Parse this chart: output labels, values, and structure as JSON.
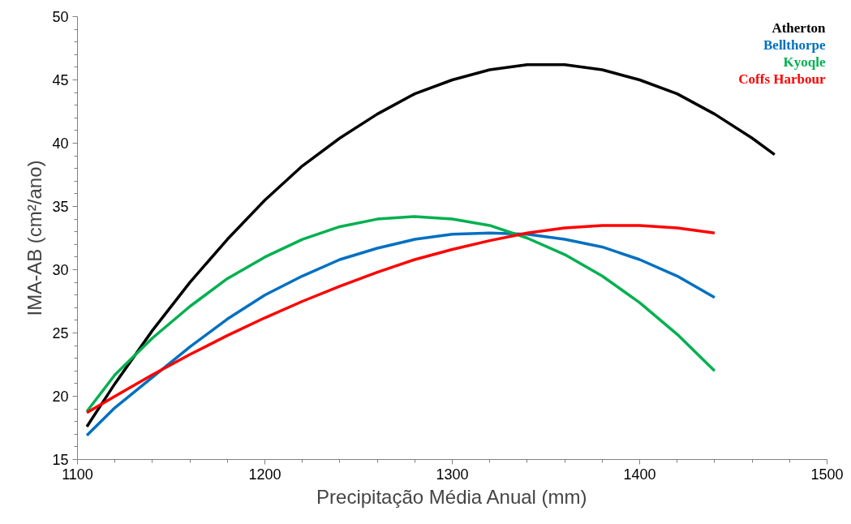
{
  "chart_data": {
    "type": "line",
    "xlabel": "Precipitação Média Anual (mm)",
    "ylabel": "IMA-AB (cm²/ano)",
    "xlim": [
      1100,
      1500
    ],
    "xticks": [
      1100,
      1200,
      1300,
      1400,
      1500
    ],
    "ylim": [
      15,
      50
    ],
    "yticks": [
      15,
      20,
      25,
      30,
      35,
      40,
      45,
      50
    ],
    "grid": false,
    "line_style": "solid",
    "marker": "none",
    "series": [
      {
        "name": "Atherton",
        "color": "#000000",
        "x": [
          1105,
          1120,
          1140,
          1160,
          1180,
          1200,
          1220,
          1240,
          1260,
          1280,
          1300,
          1320,
          1340,
          1360,
          1380,
          1400,
          1420,
          1440,
          1460,
          1472
        ],
        "values": [
          17.6,
          21.0,
          25.2,
          29.0,
          32.4,
          35.5,
          38.2,
          40.4,
          42.3,
          43.9,
          45.0,
          45.8,
          46.2,
          46.2,
          45.8,
          45.0,
          43.9,
          42.3,
          40.4,
          39.1
        ]
      },
      {
        "name": "Bellthorpe",
        "color": "#0070c0",
        "x": [
          1105,
          1120,
          1140,
          1160,
          1180,
          1200,
          1220,
          1240,
          1260,
          1280,
          1300,
          1320,
          1340,
          1360,
          1380,
          1400,
          1420,
          1440
        ],
        "values": [
          16.9,
          19.1,
          21.5,
          23.9,
          26.1,
          28.0,
          29.5,
          30.8,
          31.7,
          32.4,
          32.8,
          32.9,
          32.8,
          32.4,
          31.8,
          30.8,
          29.5,
          27.8
        ]
      },
      {
        "name": "Kyoqle",
        "color": "#00b050",
        "x": [
          1105,
          1120,
          1140,
          1160,
          1180,
          1200,
          1220,
          1240,
          1260,
          1280,
          1300,
          1320,
          1340,
          1360,
          1380,
          1400,
          1420,
          1440
        ],
        "values": [
          18.8,
          21.7,
          24.6,
          27.1,
          29.3,
          31.0,
          32.4,
          33.4,
          34.0,
          34.2,
          34.0,
          33.5,
          32.5,
          31.2,
          29.5,
          27.4,
          24.9,
          22.0
        ]
      },
      {
        "name": "Coffs Harbour",
        "color": "#ff0000",
        "x": [
          1105,
          1120,
          1140,
          1160,
          1180,
          1200,
          1220,
          1240,
          1260,
          1280,
          1300,
          1320,
          1340,
          1360,
          1380,
          1400,
          1420,
          1440
        ],
        "values": [
          18.7,
          20.0,
          21.7,
          23.3,
          24.8,
          26.2,
          27.5,
          28.7,
          29.8,
          30.8,
          31.6,
          32.3,
          32.9,
          33.3,
          33.5,
          33.5,
          33.3,
          32.9
        ]
      }
    ]
  }
}
